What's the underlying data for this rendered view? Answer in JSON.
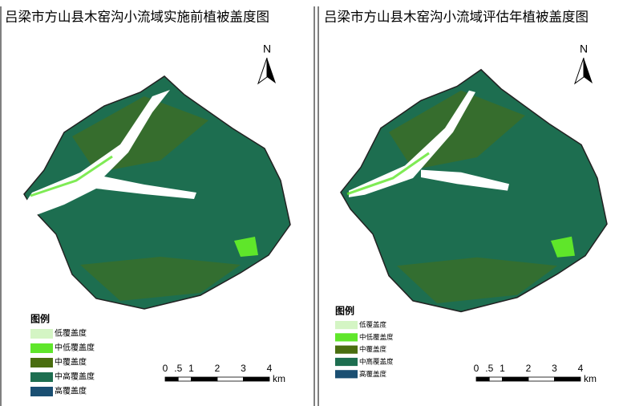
{
  "north": "N",
  "panels": [
    {
      "title": "吕梁市方山县木窑沟小流域实施前植被盖度图",
      "legend_title": "图例",
      "legend": [
        {
          "label": "低覆盖度",
          "color": "#d4f5c4"
        },
        {
          "label": "中低覆盖度",
          "color": "#5fe62a"
        },
        {
          "label": "中覆盖度",
          "color": "#4a6e10"
        },
        {
          "label": "中高覆盖度",
          "color": "#1d6e50"
        },
        {
          "label": "高覆盖度",
          "color": "#1a4f72"
        }
      ],
      "scale": [
        "0",
        ".5",
        "1",
        "2",
        "3",
        "4"
      ],
      "unit": "km"
    },
    {
      "title": "吕梁市方山县木窑沟小流域评估年植被盖度图",
      "legend_title": "图例",
      "legend": [
        {
          "label": "低覆盖度",
          "color": "#d4f5c4"
        },
        {
          "label": "中低覆盖度",
          "color": "#5fe62a"
        },
        {
          "label": "中覆盖度",
          "color": "#4a6e10"
        },
        {
          "label": "中高覆盖度",
          "color": "#1d6e50"
        },
        {
          "label": "高覆盖度",
          "color": "#1a4f72"
        }
      ],
      "scale": [
        "0",
        ".5",
        "1",
        "2",
        "3",
        "4"
      ],
      "unit": "km"
    }
  ]
}
